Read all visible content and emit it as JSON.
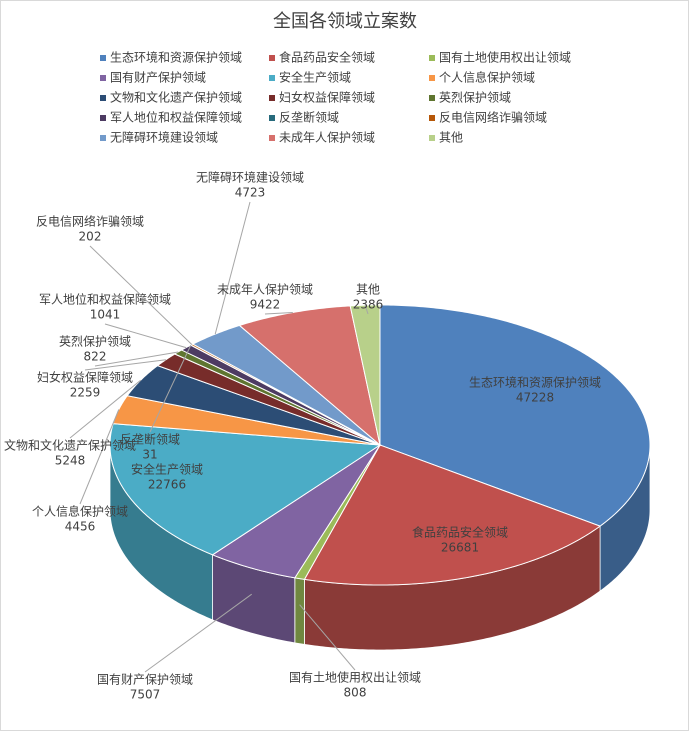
{
  "chart_data": {
    "type": "pie3d",
    "title": "全国各领域立案数",
    "categories": [
      "生态环境和资源保护领域",
      "食品药品安全领域",
      "国有土地使用权出让领域",
      "国有财产保护领域",
      "安全生产领域",
      "个人信息保护领域",
      "文物和文化遗产保护领域",
      "妇女权益保障领域",
      "英烈保护领域",
      "军人地位和权益保障领域",
      "反垄断领域",
      "反电信网络诈骗领域",
      "无障碍环境建设领域",
      "未成年人保护领域",
      "其他"
    ],
    "values": [
      47228,
      26681,
      808,
      7507,
      22766,
      4456,
      5248,
      2259,
      822,
      1041,
      31,
      202,
      4723,
      9422,
      2386
    ],
    "colors": [
      "#4f81bd",
      "#c0504d",
      "#9bbb59",
      "#8064a2",
      "#4bacc6",
      "#f79646",
      "#2c4d75",
      "#772c2a",
      "#5f7530",
      "#4d3b62",
      "#276a7c",
      "#b65708",
      "#729aca",
      "#d6706c",
      "#b8d08a"
    ],
    "legend": "top"
  }
}
